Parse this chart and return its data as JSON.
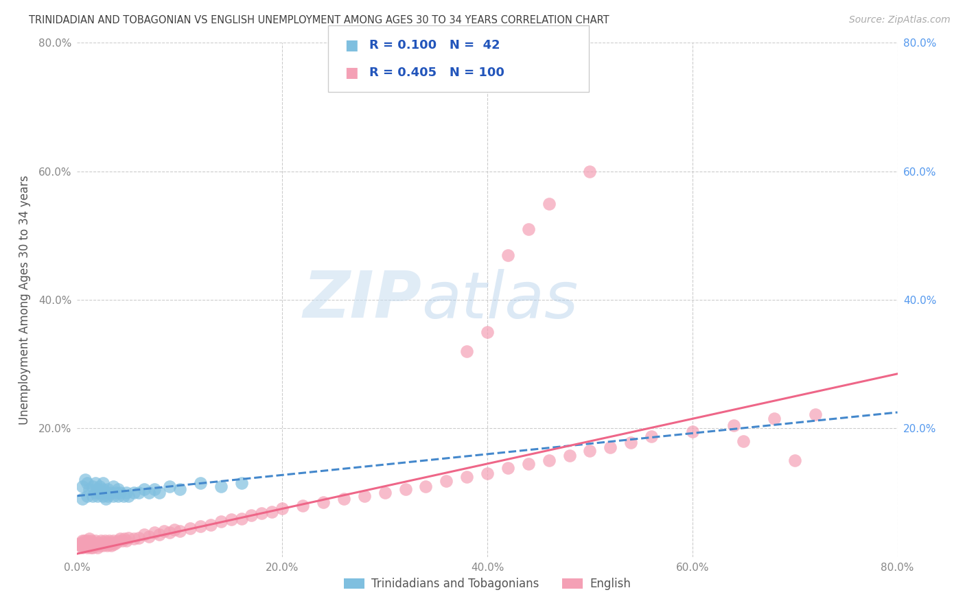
{
  "title": "TRINIDADIAN AND TOBAGONIAN VS ENGLISH UNEMPLOYMENT AMONG AGES 30 TO 34 YEARS CORRELATION CHART",
  "source": "Source: ZipAtlas.com",
  "ylabel": "Unemployment Among Ages 30 to 34 years",
  "xlim": [
    0.0,
    0.8
  ],
  "ylim": [
    0.0,
    0.8
  ],
  "xticks": [
    0.0,
    0.2,
    0.4,
    0.6,
    0.8
  ],
  "yticks": [
    0.0,
    0.2,
    0.4,
    0.6,
    0.8
  ],
  "xticklabels": [
    "0.0%",
    "20.0%",
    "40.0%",
    "60.0%",
    "80.0%"
  ],
  "left_yticklabels": [
    "",
    "20.0%",
    "40.0%",
    "60.0%",
    "80.0%"
  ],
  "right_yticklabels": [
    "20.0%",
    "40.0%",
    "60.0%",
    "80.0%"
  ],
  "right_yticks": [
    0.2,
    0.4,
    0.6,
    0.8
  ],
  "legend_labels": [
    "Trinidadians and Tobagonians",
    "English"
  ],
  "R_blue": 0.1,
  "N_blue": 42,
  "R_pink": 0.405,
  "N_pink": 100,
  "blue_color": "#7fbfdf",
  "pink_color": "#f4a0b5",
  "blue_line_color": "#4488cc",
  "pink_line_color": "#ee6688",
  "background_color": "#ffffff",
  "grid_color": "#cccccc",
  "title_color": "#404040",
  "watermark_zip": "ZIP",
  "watermark_atlas": "atlas",
  "tick_color": "#888888",
  "right_tick_color": "#5599ee",
  "blue_scatter_x": [
    0.005,
    0.005,
    0.008,
    0.01,
    0.01,
    0.012,
    0.015,
    0.015,
    0.018,
    0.018,
    0.02,
    0.02,
    0.022,
    0.022,
    0.025,
    0.025,
    0.025,
    0.028,
    0.028,
    0.03,
    0.03,
    0.032,
    0.035,
    0.035,
    0.038,
    0.04,
    0.04,
    0.042,
    0.045,
    0.048,
    0.05,
    0.055,
    0.06,
    0.065,
    0.07,
    0.075,
    0.08,
    0.09,
    0.1,
    0.12,
    0.14,
    0.16
  ],
  "blue_scatter_y": [
    0.09,
    0.11,
    0.12,
    0.095,
    0.115,
    0.105,
    0.11,
    0.095,
    0.115,
    0.1,
    0.095,
    0.105,
    0.1,
    0.11,
    0.095,
    0.105,
    0.115,
    0.1,
    0.09,
    0.095,
    0.105,
    0.1,
    0.095,
    0.11,
    0.1,
    0.095,
    0.105,
    0.1,
    0.095,
    0.1,
    0.095,
    0.1,
    0.1,
    0.105,
    0.1,
    0.105,
    0.1,
    0.11,
    0.105,
    0.115,
    0.11,
    0.115
  ],
  "pink_scatter_x": [
    0.002,
    0.003,
    0.004,
    0.005,
    0.005,
    0.006,
    0.007,
    0.007,
    0.008,
    0.008,
    0.009,
    0.01,
    0.01,
    0.011,
    0.012,
    0.012,
    0.013,
    0.013,
    0.014,
    0.014,
    0.015,
    0.015,
    0.016,
    0.017,
    0.018,
    0.019,
    0.02,
    0.021,
    0.022,
    0.023,
    0.024,
    0.025,
    0.026,
    0.027,
    0.028,
    0.029,
    0.03,
    0.031,
    0.032,
    0.033,
    0.034,
    0.035,
    0.036,
    0.038,
    0.04,
    0.042,
    0.044,
    0.046,
    0.048,
    0.05,
    0.055,
    0.06,
    0.065,
    0.07,
    0.075,
    0.08,
    0.085,
    0.09,
    0.095,
    0.1,
    0.11,
    0.12,
    0.13,
    0.14,
    0.15,
    0.16,
    0.17,
    0.18,
    0.19,
    0.2,
    0.22,
    0.24,
    0.26,
    0.28,
    0.3,
    0.32,
    0.34,
    0.36,
    0.38,
    0.4,
    0.42,
    0.44,
    0.46,
    0.48,
    0.5,
    0.52,
    0.54,
    0.56,
    0.6,
    0.64,
    0.68,
    0.72,
    0.38,
    0.4,
    0.42,
    0.44,
    0.46,
    0.5,
    0.65,
    0.7
  ],
  "pink_scatter_y": [
    0.02,
    0.018,
    0.022,
    0.015,
    0.025,
    0.018,
    0.02,
    0.025,
    0.018,
    0.022,
    0.02,
    0.015,
    0.025,
    0.018,
    0.02,
    0.028,
    0.015,
    0.022,
    0.018,
    0.025,
    0.02,
    0.015,
    0.022,
    0.018,
    0.025,
    0.02,
    0.015,
    0.022,
    0.018,
    0.025,
    0.02,
    0.018,
    0.022,
    0.025,
    0.02,
    0.018,
    0.022,
    0.025,
    0.02,
    0.018,
    0.022,
    0.025,
    0.02,
    0.022,
    0.025,
    0.028,
    0.025,
    0.028,
    0.025,
    0.03,
    0.028,
    0.03,
    0.035,
    0.032,
    0.038,
    0.035,
    0.04,
    0.038,
    0.042,
    0.04,
    0.045,
    0.048,
    0.05,
    0.055,
    0.058,
    0.06,
    0.065,
    0.068,
    0.07,
    0.075,
    0.08,
    0.085,
    0.09,
    0.095,
    0.1,
    0.105,
    0.11,
    0.118,
    0.125,
    0.13,
    0.138,
    0.145,
    0.15,
    0.158,
    0.165,
    0.17,
    0.178,
    0.188,
    0.195,
    0.205,
    0.215,
    0.222,
    0.32,
    0.35,
    0.47,
    0.51,
    0.55,
    0.6,
    0.18,
    0.15
  ],
  "blue_line_x": [
    0.0,
    0.8
  ],
  "blue_line_y": [
    0.095,
    0.225
  ],
  "pink_line_x": [
    0.0,
    0.8
  ],
  "pink_line_y": [
    0.005,
    0.285
  ]
}
